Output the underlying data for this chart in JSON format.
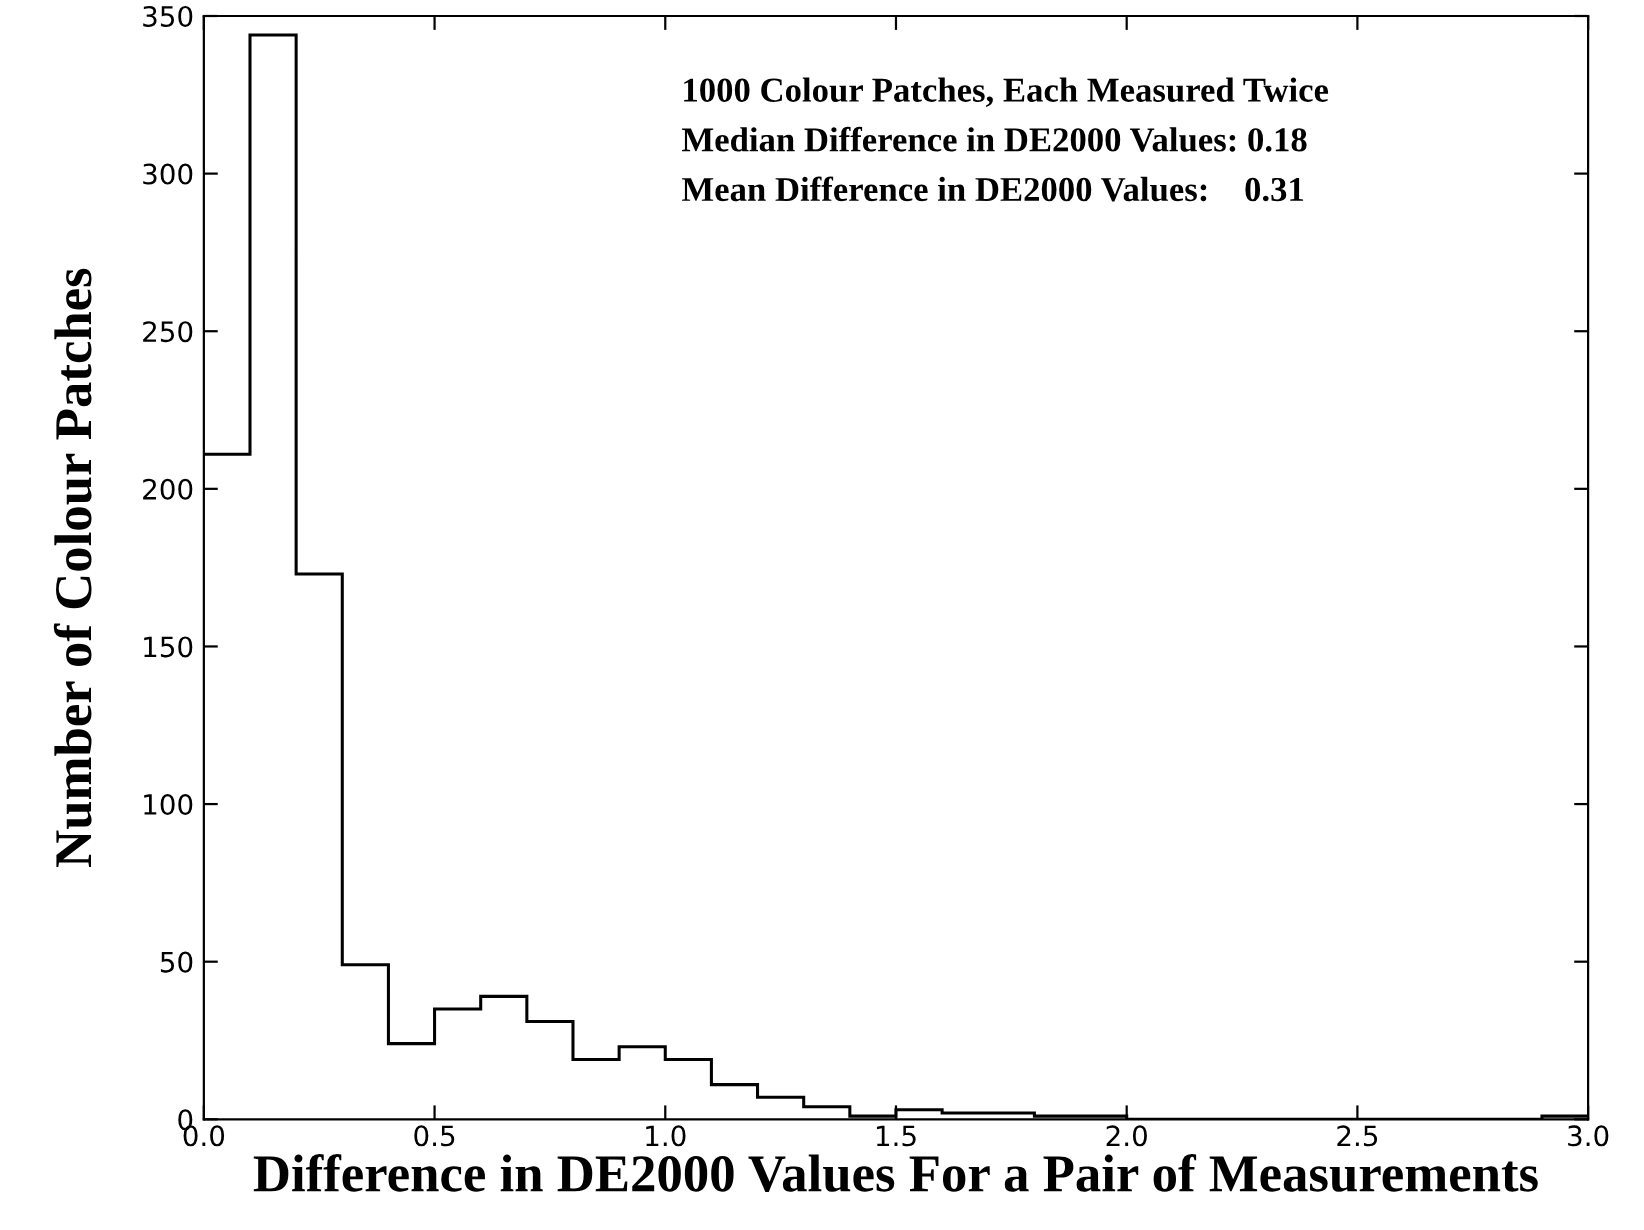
{
  "chart_data": {
    "type": "histogram",
    "xlabel": "Difference in DE2000 Values For a Pair of Measurements",
    "ylabel": "Number of Colour Patches",
    "annotations": [
      "1000 Colour Patches, Each Measured Twice",
      "Median Difference in DE2000 Values: 0.18",
      "Mean Difference in DE2000 Values:    0.31"
    ],
    "bins": [
      0.0,
      0.1,
      0.2,
      0.3,
      0.4,
      0.5,
      0.6,
      0.7,
      0.8,
      0.9,
      1.0,
      1.1,
      1.2,
      1.3,
      1.4,
      1.5,
      1.6,
      1.7,
      1.8,
      1.9,
      2.0,
      2.1,
      2.2,
      2.3,
      2.4,
      2.5,
      2.6,
      2.7,
      2.8,
      2.9,
      3.0
    ],
    "values": [
      211,
      344,
      173,
      49,
      24,
      35,
      39,
      31,
      19,
      23,
      19,
      11,
      7,
      4,
      1,
      3,
      2,
      2,
      1,
      1,
      0,
      0,
      0,
      0,
      0,
      0,
      0,
      0,
      0,
      1
    ],
    "color": "#000000",
    "xlim": [
      0,
      3.0
    ],
    "xticks": [
      {
        "value": 0,
        "label": "0.0"
      },
      0.5,
      {
        "value": 1,
        "label": "1.0"
      },
      1.5,
      {
        "value": 2,
        "label": "2.0"
      },
      2.5,
      {
        "value": 3,
        "label": "3.0"
      }
    ],
    "ylim": [
      0,
      350
    ],
    "yticks": [
      0,
      50,
      100,
      150,
      200,
      250,
      300,
      350
    ],
    "grid": false,
    "legend": false
  }
}
